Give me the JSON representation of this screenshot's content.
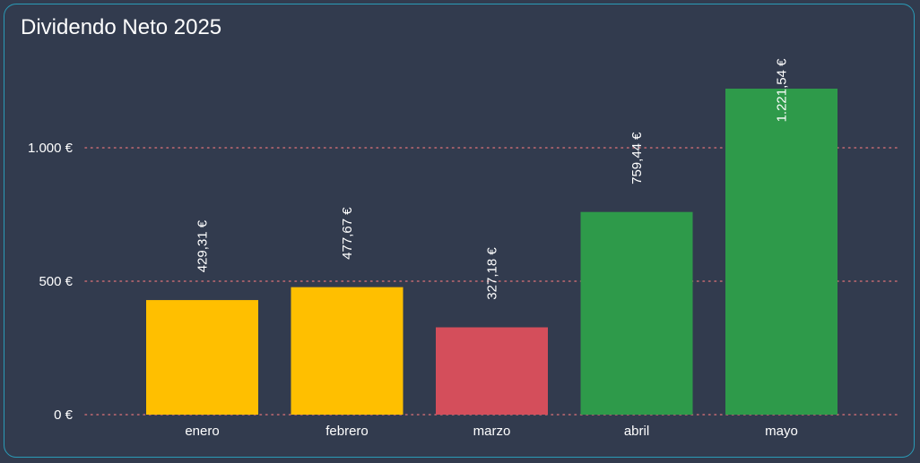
{
  "title": "Dividendo Neto 2025",
  "colors": {
    "background": "#323b4e",
    "border": "#2a9bb7",
    "grid": "#c56a72",
    "text": "#ffffff"
  },
  "chart_data": {
    "type": "bar",
    "title": "Dividendo Neto 2025",
    "xlabel": "",
    "ylabel": "",
    "categories": [
      "enero",
      "febrero",
      "marzo",
      "abril",
      "mayo"
    ],
    "values": [
      429.31,
      477.67,
      327.18,
      759.44,
      1221.54
    ],
    "data_labels": [
      "429,31 €",
      "477,67 €",
      "327,18 €",
      "759,44 €",
      "1.221,54 €"
    ],
    "bar_colors": [
      "#ffbf00",
      "#ffbf00",
      "#d44e5b",
      "#2e9a4a",
      "#2e9a4a"
    ],
    "y_ticks": [
      0,
      500,
      1000
    ],
    "y_tick_labels": [
      "0 €",
      "500 €",
      "1.000 €"
    ],
    "ylim": [
      0,
      1300
    ],
    "grid": true,
    "grid_style": "dotted",
    "legend": "none"
  }
}
